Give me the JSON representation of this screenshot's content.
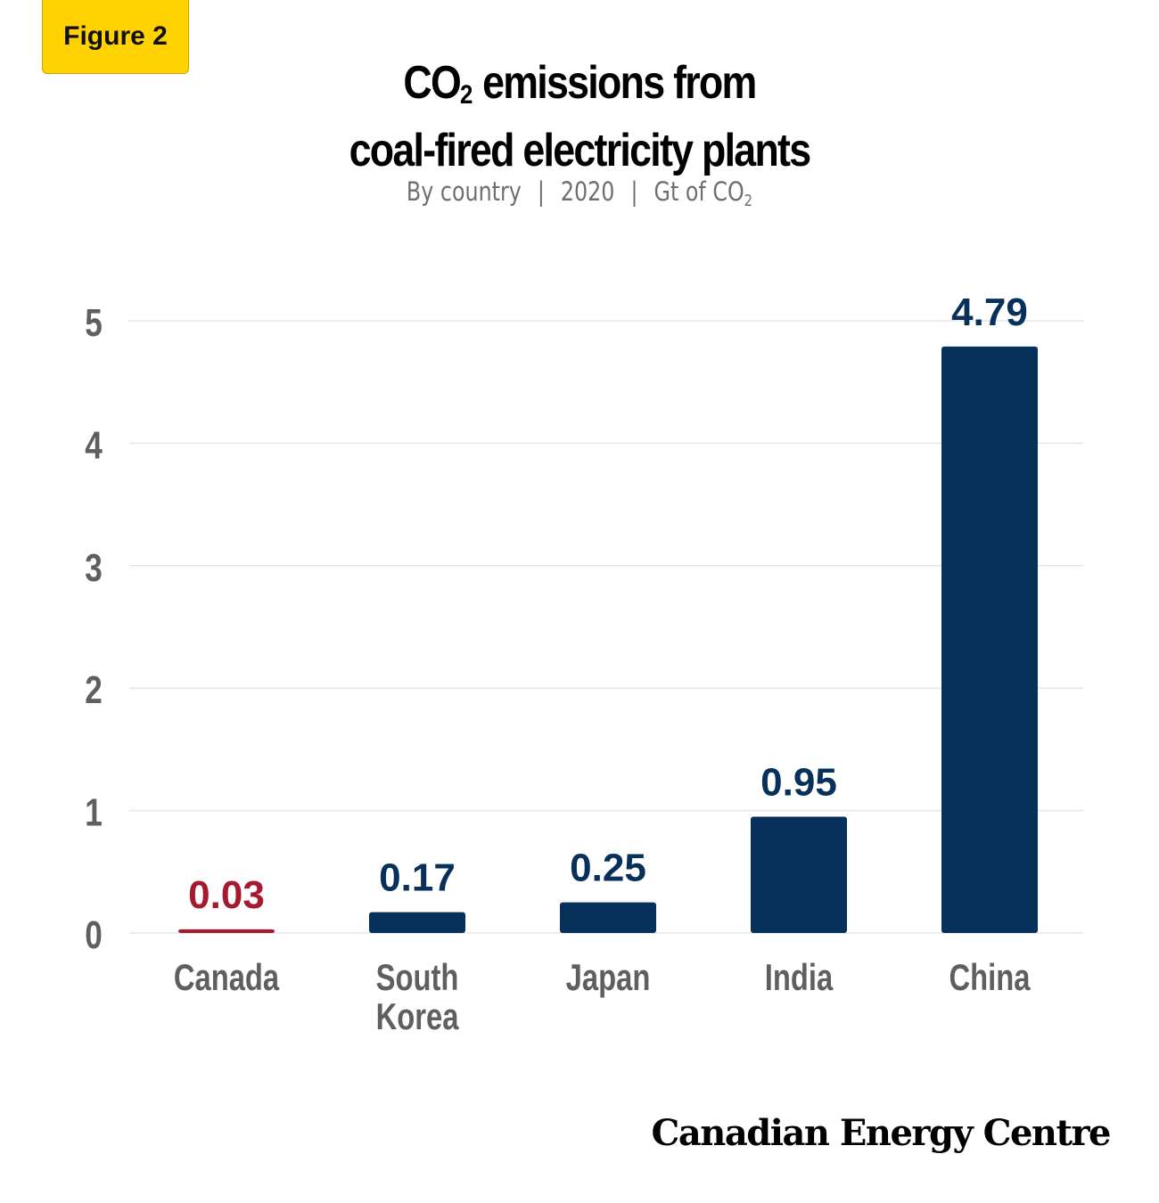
{
  "badge": "Figure 2",
  "title": {
    "line1_pre": "CO",
    "line1_sub": "2",
    "line1_post": " emissions from",
    "line2": "coal-fired electricity plants"
  },
  "subtitle": {
    "part1": "By country",
    "part2": "2020",
    "part3_pre": "Gt of CO",
    "part3_sub": "2"
  },
  "logo": "Canadian Energy Centre",
  "chart_data": {
    "type": "bar",
    "categories": [
      "Canada",
      "South Korea",
      "Japan",
      "India",
      "China"
    ],
    "category_lines": [
      [
        "Canada"
      ],
      [
        "South",
        "Korea"
      ],
      [
        "Japan"
      ],
      [
        "India"
      ],
      [
        "China"
      ]
    ],
    "values": [
      0.03,
      0.17,
      0.25,
      0.95,
      4.79
    ],
    "data_labels": [
      "0.03",
      "0.17",
      "0.25",
      "0.95",
      "4.79"
    ],
    "ylim": [
      0,
      5
    ],
    "yticks": [
      0,
      1,
      2,
      3,
      4,
      5
    ],
    "grid": true,
    "colors": {
      "highlight": "#A6192E",
      "bar": "#07305B",
      "tick_text": "#5f5f5f",
      "grid": "#e6e6e6"
    },
    "highlight_category": "Canada"
  }
}
